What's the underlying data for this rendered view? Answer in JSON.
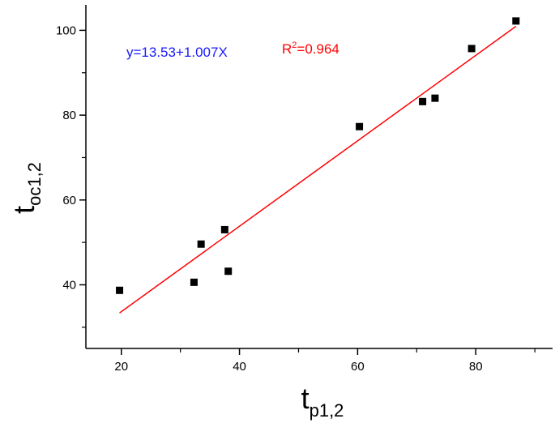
{
  "chart_data": {
    "type": "scatter",
    "xlabel": {
      "main": "t",
      "sub": "p1,2"
    },
    "ylabel": {
      "main": "t",
      "sub": "oc1,2"
    },
    "xlim": [
      14,
      93
    ],
    "ylim": [
      25,
      106
    ],
    "x_ticks": [
      20,
      40,
      60,
      80
    ],
    "x_tick_labels": [
      "20",
      "40",
      "60",
      "80"
    ],
    "y_ticks": [
      40,
      60,
      80,
      100
    ],
    "y_tick_labels": [
      "40",
      "60",
      "80",
      "100"
    ],
    "x_minor_ticks": [
      30,
      50,
      70,
      90
    ],
    "y_minor_ticks": [
      30,
      50,
      70,
      90
    ],
    "grid": false,
    "series": [
      {
        "marker": "square",
        "color": "#000000",
        "points": [
          {
            "x": 19.7,
            "y": 38.7
          },
          {
            "x": 32.3,
            "y": 40.6
          },
          {
            "x": 33.5,
            "y": 49.6
          },
          {
            "x": 37.5,
            "y": 53.0
          },
          {
            "x": 38.1,
            "y": 43.2
          },
          {
            "x": 60.3,
            "y": 77.3
          },
          {
            "x": 71.0,
            "y": 83.2
          },
          {
            "x": 73.1,
            "y": 84.0
          },
          {
            "x": 79.3,
            "y": 95.7
          },
          {
            "x": 86.8,
            "y": 102.2
          }
        ]
      }
    ],
    "fit_line": {
      "color": "#ff0000",
      "intercept": 13.53,
      "slope": 1.007,
      "x_range": [
        19.7,
        86.8
      ]
    },
    "annotations": {
      "equation": {
        "text": "y=13.53+1.007X",
        "color": "#1a1aff"
      },
      "r2": {
        "prefix": "R",
        "sup": "2",
        "suffix": "=0.964",
        "color": "#ff0000"
      }
    }
  }
}
